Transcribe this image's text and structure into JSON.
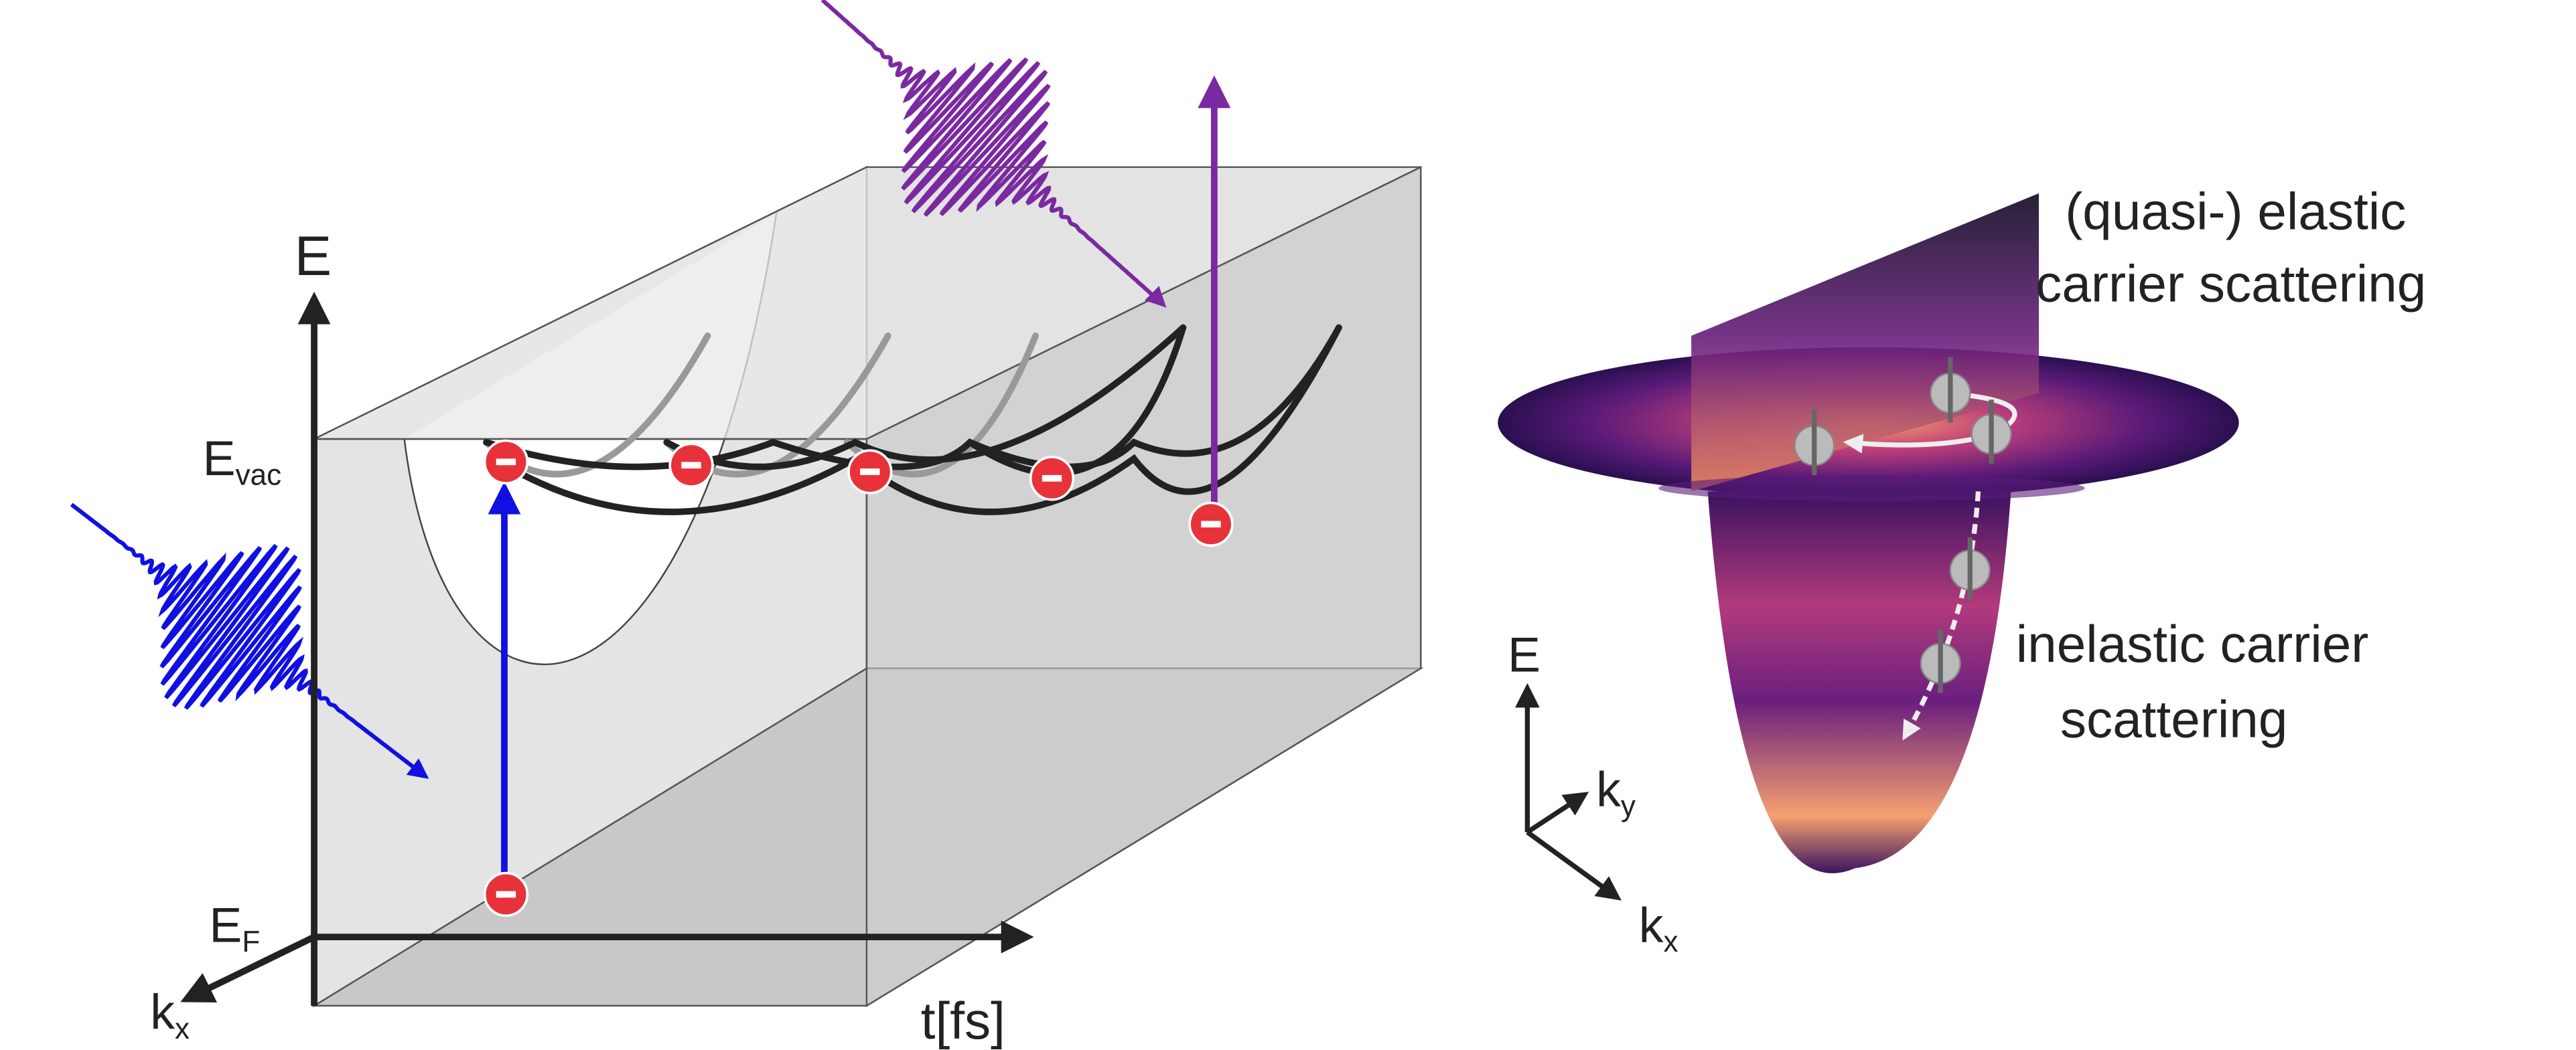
{
  "left_panel": {
    "energy_axis": "E",
    "vacuum_level": {
      "main": "E",
      "sub": "vac"
    },
    "fermi_level": {
      "main": "E",
      "sub": "F"
    },
    "momentum_axis": {
      "main": "k",
      "sub": "x"
    },
    "time_axis": "t[fs]"
  },
  "right_panel": {
    "elastic_label": [
      "(quasi-) elastic",
      "carrier scattering"
    ],
    "inelastic_label": [
      "inelastic carrier",
      "scattering"
    ],
    "energy_axis": "E",
    "ky_axis": {
      "main": "k",
      "sub": "y"
    },
    "kx_axis": {
      "main": "k",
      "sub": "x"
    }
  }
}
